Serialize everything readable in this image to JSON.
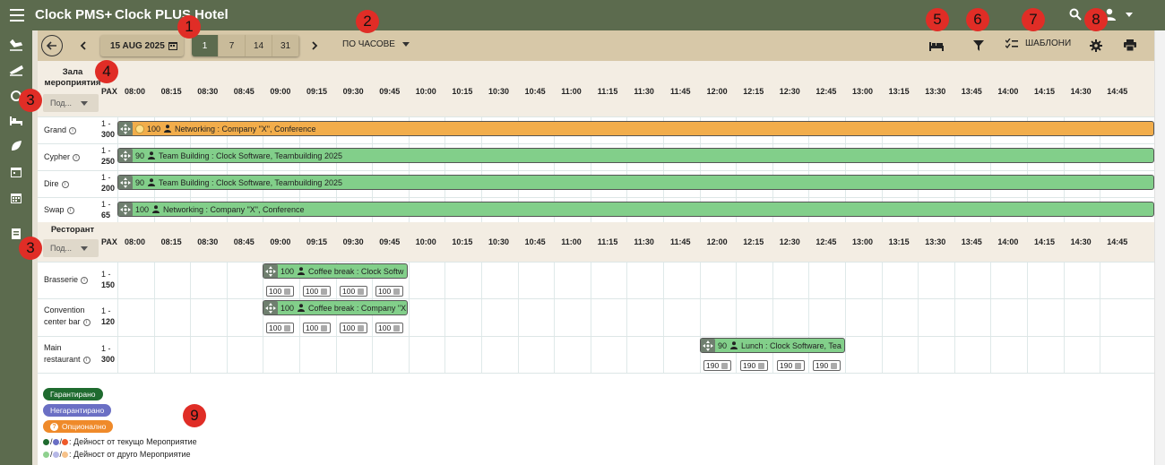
{
  "app": {
    "name": "Clock PMS+",
    "hotel": "Clock PLUS Hotel"
  },
  "toolbar": {
    "date": "15 AUG 2025",
    "ranges": [
      "1",
      "7",
      "14",
      "31"
    ],
    "mode": "ПО ЧАСОВЕ",
    "templates": "ШАБЛОНИ"
  },
  "times": [
    "08:00",
    "08:15",
    "08:30",
    "08:45",
    "09:00",
    "09:15",
    "09:30",
    "09:45",
    "10:00",
    "10:15",
    "10:30",
    "10:45",
    "11:00",
    "11:15",
    "11:30",
    "11:45",
    "12:00",
    "12:15",
    "12:30",
    "12:45",
    "13:00",
    "13:15",
    "13:30",
    "13:45",
    "14:00",
    "14:15",
    "14:30",
    "14:45"
  ],
  "pax_label": "PAX",
  "sections": [
    {
      "title": "Зала мероприятия",
      "filter": "Под...",
      "rooms": [
        {
          "name": "Grand",
          "pax_min": "1 -",
          "pax_max": "300"
        },
        {
          "name": "Cypher",
          "pax_min": "1 -",
          "pax_max": "250"
        },
        {
          "name": "Dire",
          "pax_min": "1 -",
          "pax_max": "200"
        },
        {
          "name": "Swap",
          "pax_min": "1 -",
          "pax_max": "65"
        }
      ]
    },
    {
      "title": "Ресторант",
      "filter": "Под...",
      "rooms": [
        {
          "name": "Brasserie",
          "pax_min": "1 -",
          "pax_max": "150"
        },
        {
          "name": "Convention center bar",
          "pax_min": "1 -",
          "pax_max": "120"
        },
        {
          "name": "Main restaurant",
          "pax_min": "1 -",
          "pax_max": "300"
        }
      ]
    }
  ],
  "bookings": [
    {
      "pax": "100",
      "title": "Networking : Company \"X\", Conference",
      "color": "#f2ad4b"
    },
    {
      "pax": "90",
      "title": "Team Building : Clock Software, Teambuilding 2025",
      "color": "#82cf8a"
    },
    {
      "pax": "90",
      "title": "Team Building : Clock Software, Teambuilding 2025",
      "color": "#82cf8a"
    },
    {
      "pax": "100",
      "title": "Networking : Company \"X\", Conference",
      "color": "#82cf8a"
    },
    {
      "pax": "100",
      "title": "Coffee break : Clock Softw",
      "chips": [
        "100",
        "100",
        "100",
        "100"
      ]
    },
    {
      "pax": "100",
      "title": "Coffee break : Company \"X",
      "chips": [
        "100",
        "100",
        "100",
        "100"
      ]
    },
    {
      "pax": "90",
      "title": "Lunch : Clock Software, Tea",
      "chips": [
        "190",
        "190",
        "190",
        "190"
      ]
    }
  ],
  "legend": {
    "guaranteed": "Гарантирано",
    "non_guaranteed": "Негарантирано",
    "optional": "Опционално",
    "current_event": ": Дейност от текущо Мероприятие",
    "other_event": ": Дейност от друго Мероприятие",
    "colors": {
      "guaranteed": "#1f6b2f",
      "non_guaranteed": "#6a6fc4",
      "optional": "#ef8a2a"
    }
  },
  "callouts": [
    "1",
    "2",
    "3",
    "4",
    "5",
    "6",
    "7",
    "8",
    "9"
  ]
}
